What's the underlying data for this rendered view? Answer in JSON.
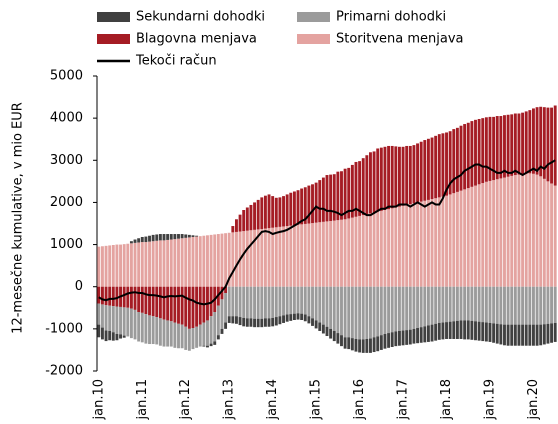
{
  "chart_data": {
    "type": "bar",
    "stacked": true,
    "y_label": "12-mesečne kumulative, v mio EUR",
    "ylim": [
      -2000,
      5000
    ],
    "yticks": [
      -2000,
      -1000,
      0,
      1000,
      2000,
      3000,
      4000,
      5000
    ],
    "categories": [
      "jan.10",
      null,
      null,
      null,
      null,
      null,
      null,
      null,
      null,
      null,
      null,
      null,
      "jan.11",
      null,
      null,
      null,
      null,
      null,
      null,
      null,
      null,
      null,
      null,
      null,
      "jan.12",
      null,
      null,
      null,
      null,
      null,
      null,
      null,
      null,
      null,
      null,
      null,
      "jan.13",
      null,
      null,
      null,
      null,
      null,
      null,
      null,
      null,
      null,
      null,
      null,
      "jan.14",
      null,
      null,
      null,
      null,
      null,
      null,
      null,
      null,
      null,
      null,
      null,
      "jan.15",
      null,
      null,
      null,
      null,
      null,
      null,
      null,
      null,
      null,
      null,
      null,
      "jan.16",
      null,
      null,
      null,
      null,
      null,
      null,
      null,
      null,
      null,
      null,
      null,
      "jan.17",
      null,
      null,
      null,
      null,
      null,
      null,
      null,
      null,
      null,
      null,
      null,
      "jan.18",
      null,
      null,
      null,
      null,
      null,
      null,
      null,
      null,
      null,
      null,
      null,
      "jan.19",
      null,
      null,
      null,
      null,
      null,
      null,
      null,
      null,
      null,
      null,
      null,
      "jan.20",
      null,
      null,
      null,
      null,
      null,
      null
    ],
    "series": [
      {
        "name": "Sekundarni dohodki",
        "color": "#404040",
        "values": [
          -300,
          -280,
          -250,
          -220,
          -200,
          -150,
          -100,
          -50,
          0,
          50,
          80,
          100,
          120,
          130,
          140,
          150,
          150,
          150,
          150,
          140,
          130,
          120,
          110,
          100,
          80,
          60,
          40,
          20,
          0,
          -20,
          -40,
          -60,
          -80,
          -100,
          -120,
          -150,
          -160,
          -170,
          -180,
          -190,
          -200,
          -200,
          -200,
          -200,
          -200,
          -200,
          -200,
          -200,
          -200,
          -200,
          -190,
          -180,
          -170,
          -160,
          -150,
          -150,
          -150,
          -160,
          -170,
          -180,
          -190,
          -200,
          -210,
          -220,
          -230,
          -240,
          -250,
          -260,
          -270,
          -280,
          -290,
          -300,
          -310,
          -320,
          -330,
          -340,
          -350,
          -350,
          -350,
          -350,
          -350,
          -350,
          -350,
          -350,
          -350,
          -350,
          -350,
          -350,
          -360,
          -370,
          -380,
          -390,
          -400,
          -400,
          -400,
          -400,
          -400,
          -410,
          -420,
          -430,
          -440,
          -450,
          -450,
          -450,
          -450,
          -450,
          -450,
          -450,
          -450,
          -460,
          -470,
          -480,
          -490,
          -500,
          -500,
          -500,
          -500,
          -500,
          -500,
          -500,
          -500,
          -500,
          -490,
          -480,
          -470,
          -460,
          -450
        ]
      },
      {
        "name": "Primarni dohodki",
        "color": "#9b9b9b",
        "values": [
          -500,
          -550,
          -600,
          -600,
          -620,
          -650,
          -650,
          -670,
          -680,
          -700,
          -700,
          -700,
          -700,
          -700,
          -680,
          -660,
          -650,
          -650,
          -640,
          -620,
          -600,
          -600,
          -580,
          -560,
          -550,
          -520,
          -500,
          -500,
          -520,
          -550,
          -600,
          -650,
          -700,
          -700,
          -700,
          -700,
          -700,
          -700,
          -700,
          -720,
          -740,
          -750,
          -750,
          -760,
          -760,
          -760,
          -750,
          -750,
          -740,
          -720,
          -700,
          -680,
          -660,
          -650,
          -640,
          -630,
          -640,
          -660,
          -700,
          -750,
          -800,
          -850,
          -900,
          -950,
          -1000,
          -1050,
          -1100,
          -1150,
          -1200,
          -1200,
          -1220,
          -1240,
          -1250,
          -1250,
          -1240,
          -1230,
          -1200,
          -1180,
          -1150,
          -1120,
          -1100,
          -1080,
          -1060,
          -1050,
          -1040,
          -1030,
          -1020,
          -1000,
          -980,
          -960,
          -940,
          -920,
          -900,
          -880,
          -860,
          -850,
          -840,
          -830,
          -820,
          -810,
          -800,
          -800,
          -800,
          -810,
          -820,
          -830,
          -840,
          -850,
          -860,
          -870,
          -880,
          -890,
          -900,
          -900,
          -900,
          -900,
          -900,
          -900,
          -900,
          -900,
          -900,
          -900,
          -900,
          -890,
          -880,
          -870,
          -860
        ]
      },
      {
        "name": "Blagovna menjava",
        "color": "#a51c24",
        "values": [
          -400,
          -420,
          -440,
          -450,
          -460,
          -470,
          -480,
          -490,
          -500,
          -520,
          -550,
          -600,
          -620,
          -650,
          -680,
          -700,
          -720,
          -750,
          -780,
          -800,
          -820,
          -850,
          -880,
          -900,
          -950,
          -1000,
          -980,
          -950,
          -900,
          -850,
          -800,
          -700,
          -600,
          -450,
          -300,
          -150,
          0,
          150,
          300,
          400,
          500,
          550,
          600,
          650,
          700,
          750,
          780,
          800,
          750,
          700,
          700,
          720,
          750,
          780,
          800,
          820,
          850,
          870,
          900,
          920,
          950,
          1000,
          1050,
          1100,
          1100,
          1100,
          1150,
          1150,
          1200,
          1200,
          1250,
          1300,
          1300,
          1350,
          1400,
          1450,
          1450,
          1500,
          1500,
          1500,
          1500,
          1480,
          1450,
          1420,
          1400,
          1400,
          1380,
          1380,
          1400,
          1420,
          1440,
          1450,
          1460,
          1480,
          1500,
          1500,
          1500,
          1500,
          1520,
          1520,
          1540,
          1550,
          1550,
          1560,
          1560,
          1550,
          1540,
          1530,
          1520,
          1500,
          1500,
          1480,
          1480,
          1470,
          1460,
          1460,
          1450,
          1460,
          1480,
          1500,
          1550,
          1600,
          1650,
          1700,
          1750,
          1800,
          1900
        ]
      },
      {
        "name": "Storitvena menjava",
        "color": "#e4a3a0",
        "values": [
          950,
          960,
          970,
          980,
          990,
          1000,
          1000,
          1010,
          1020,
          1030,
          1040,
          1050,
          1060,
          1060,
          1070,
          1080,
          1090,
          1100,
          1100,
          1110,
          1120,
          1130,
          1140,
          1150,
          1160,
          1170,
          1180,
          1190,
          1200,
          1210,
          1220,
          1230,
          1240,
          1250,
          1260,
          1270,
          1280,
          1290,
          1300,
          1310,
          1320,
          1330,
          1340,
          1350,
          1360,
          1370,
          1380,
          1390,
          1400,
          1410,
          1420,
          1430,
          1440,
          1450,
          1460,
          1470,
          1480,
          1490,
          1500,
          1510,
          1520,
          1530,
          1540,
          1550,
          1560,
          1570,
          1580,
          1590,
          1600,
          1620,
          1640,
          1660,
          1680,
          1700,
          1720,
          1740,
          1760,
          1780,
          1800,
          1820,
          1840,
          1860,
          1880,
          1900,
          1920,
          1940,
          1960,
          1980,
          2000,
          2020,
          2040,
          2060,
          2080,
          2100,
          2120,
          2140,
          2160,
          2190,
          2220,
          2250,
          2280,
          2310,
          2340,
          2370,
          2400,
          2430,
          2460,
          2490,
          2510,
          2530,
          2550,
          2570,
          2590,
          2610,
          2630,
          2650,
          2660,
          2670,
          2680,
          2690,
          2680,
          2660,
          2620,
          2560,
          2500,
          2450,
          2400
        ]
      },
      {
        "name": "Tekoči račun",
        "color": "#000000",
        "type": "line",
        "values": [
          -250,
          -300,
          -320,
          -290,
          -290,
          -270,
          -230,
          -200,
          -160,
          -140,
          -130,
          -150,
          -150,
          -180,
          -200,
          -200,
          -210,
          -230,
          -250,
          -230,
          -220,
          -230,
          -220,
          -210,
          -260,
          -300,
          -330,
          -380,
          -400,
          -420,
          -400,
          -380,
          -300,
          -200,
          -100,
          0,
          200,
          350,
          500,
          650,
          780,
          900,
          1000,
          1100,
          1200,
          1300,
          1320,
          1300,
          1250,
          1280,
          1300,
          1320,
          1350,
          1400,
          1450,
          1500,
          1560,
          1600,
          1700,
          1800,
          1900,
          1850,
          1850,
          1800,
          1800,
          1780,
          1750,
          1700,
          1750,
          1800,
          1800,
          1850,
          1800,
          1750,
          1700,
          1700,
          1750,
          1800,
          1850,
          1850,
          1900,
          1900,
          1900,
          1950,
          1950,
          1950,
          1900,
          1950,
          2000,
          1950,
          1900,
          1950,
          2000,
          1950,
          1950,
          2100,
          2300,
          2450,
          2550,
          2600,
          2650,
          2750,
          2800,
          2850,
          2900,
          2900,
          2850,
          2850,
          2800,
          2750,
          2700,
          2700,
          2750,
          2700,
          2700,
          2750,
          2700,
          2650,
          2700,
          2750,
          2800,
          2750,
          2850,
          2800,
          2900,
          2950,
          3000
        ]
      }
    ]
  }
}
